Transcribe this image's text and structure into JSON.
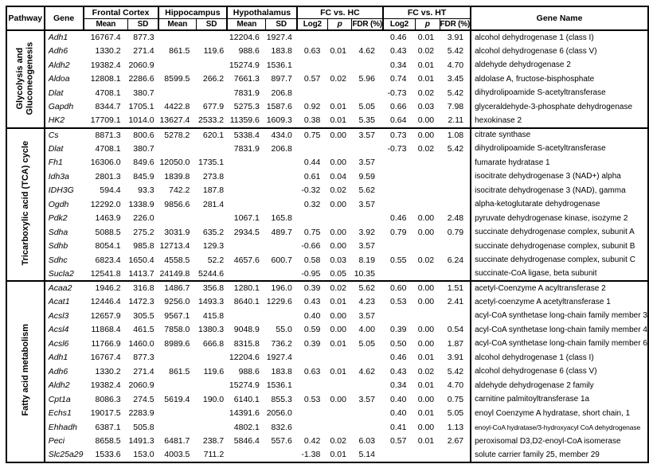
{
  "table": {
    "headers": {
      "pathway": "Pathway",
      "gene": "Gene",
      "gene_name": "Gene Name",
      "groups": [
        {
          "label": "Frontal Cortex",
          "sub": [
            "Mean",
            "SD"
          ]
        },
        {
          "label": "Hippocampus",
          "sub": [
            "Mean",
            "SD"
          ]
        },
        {
          "label": "Hypothalamus",
          "sub": [
            "Mean",
            "SD"
          ]
        },
        {
          "label": "FC vs. HC",
          "sub": [
            "Log2",
            "p",
            "FDR (%)"
          ]
        },
        {
          "label": "FC vs. HT",
          "sub": [
            "Log2",
            "p",
            "FDR (%)"
          ]
        }
      ]
    },
    "sections": [
      {
        "pathway": "Glycolysis and Gluconeogenesis",
        "rows": [
          {
            "gene": "Adh1",
            "values": [
              "16767.4",
              "877.3",
              "",
              "",
              "12204.6",
              "1927.4",
              "",
              "",
              "",
              "0.46",
              "0.01",
              "3.91"
            ],
            "gene_name": "alcohol dehydrogenase 1 (class I)"
          },
          {
            "gene": "Adh6",
            "values": [
              "1330.2",
              "271.4",
              "861.5",
              "119.6",
              "988.6",
              "183.8",
              "0.63",
              "0.01",
              "4.62",
              "0.43",
              "0.02",
              "5.42"
            ],
            "gene_name": "alcohol dehydrogenase 6 (class V)"
          },
          {
            "gene": "Aldh2",
            "values": [
              "19382.4",
              "2060.9",
              "",
              "",
              "15274.9",
              "1536.1",
              "",
              "",
              "",
              "0.34",
              "0.01",
              "4.70"
            ],
            "gene_name": "aldehyde dehydrogenase 2"
          },
          {
            "gene": "Aldoa",
            "values": [
              "12808.1",
              "2286.6",
              "8599.5",
              "266.2",
              "7661.3",
              "897.7",
              "0.57",
              "0.02",
              "5.96",
              "0.74",
              "0.01",
              "3.45"
            ],
            "gene_name": "aldolase A, fructose-bisphosphate"
          },
          {
            "gene": "Dlat",
            "values": [
              "4708.1",
              "380.7",
              "",
              "",
              "7831.9",
              "206.8",
              "",
              "",
              "",
              "-0.73",
              "0.02",
              "5.42"
            ],
            "gene_name": "dihydrolipoamide S-acetyltransferase"
          },
          {
            "gene": "Gapdh",
            "values": [
              "8344.7",
              "1705.1",
              "4422.8",
              "677.9",
              "5275.3",
              "1587.6",
              "0.92",
              "0.01",
              "5.05",
              "0.66",
              "0.03",
              "7.98"
            ],
            "gene_name": "glyceraldehyde-3-phosphate dehydrogenase"
          },
          {
            "gene": "HK2",
            "values": [
              "17709.1",
              "1014.0",
              "13627.4",
              "2533.2",
              "11359.6",
              "1609.3",
              "0.38",
              "0.01",
              "5.35",
              "0.64",
              "0.00",
              "2.11"
            ],
            "gene_name": "hexokinase 2"
          }
        ]
      },
      {
        "pathway": "Tricarboxylic acid (TCA) cycle",
        "rows": [
          {
            "gene": "Cs",
            "values": [
              "8871.3",
              "800.6",
              "5278.2",
              "620.1",
              "5338.4",
              "434.0",
              "0.75",
              "0.00",
              "3.57",
              "0.73",
              "0.00",
              "1.08"
            ],
            "gene_name": "citrate synthase"
          },
          {
            "gene": "Dlat",
            "values": [
              "4708.1",
              "380.7",
              "",
              "",
              "7831.9",
              "206.8",
              "",
              "",
              "",
              "-0.73",
              "0.02",
              "5.42"
            ],
            "gene_name": "dihydrolipoamide S-acetyltransferase"
          },
          {
            "gene": "Fh1",
            "values": [
              "16306.0",
              "849.6",
              "12050.0",
              "1735.1",
              "",
              "",
              "0.44",
              "0.00",
              "3.57",
              "",
              "",
              ""
            ],
            "gene_name": "fumarate hydratase 1"
          },
          {
            "gene": "Idh3a",
            "values": [
              "2801.3",
              "845.9",
              "1839.8",
              "273.8",
              "",
              "",
              "0.61",
              "0.04",
              "9.59",
              "",
              "",
              ""
            ],
            "gene_name": "isocitrate dehydrogenase 3 (NAD+) alpha"
          },
          {
            "gene": "IDH3G",
            "values": [
              "594.4",
              "93.3",
              "742.2",
              "187.8",
              "",
              "",
              "-0.32",
              "0.02",
              "5.62",
              "",
              "",
              ""
            ],
            "gene_name": "isocitrate dehydrogenase 3 (NAD), gamma"
          },
          {
            "gene": "Ogdh",
            "values": [
              "12292.0",
              "1338.9",
              "9856.6",
              "281.4",
              "",
              "",
              "0.32",
              "0.00",
              "3.57",
              "",
              "",
              ""
            ],
            "gene_name": "alpha-ketoglutarate dehydrogenase"
          },
          {
            "gene": "Pdk2",
            "values": [
              "1463.9",
              "226.0",
              "",
              "",
              "1067.1",
              "165.8",
              "",
              "",
              "",
              "0.46",
              "0.00",
              "2.48"
            ],
            "gene_name": "pyruvate dehydrogenase kinase, isozyme 2"
          },
          {
            "gene": "Sdha",
            "values": [
              "5088.5",
              "275.2",
              "3031.9",
              "635.2",
              "2934.5",
              "489.7",
              "0.75",
              "0.00",
              "3.92",
              "0.79",
              "0.00",
              "0.79"
            ],
            "gene_name": "succinate dehydrogenase complex, subunit A"
          },
          {
            "gene": "Sdhb",
            "values": [
              "8054.1",
              "985.8",
              "12713.4",
              "129.3",
              "",
              "",
              "-0.66",
              "0.00",
              "3.57",
              "",
              "",
              ""
            ],
            "gene_name": "succinate dehydrogenase complex, subunit B"
          },
          {
            "gene": "Sdhc",
            "values": [
              "6823.4",
              "1650.4",
              "4558.5",
              "52.2",
              "4657.6",
              "600.7",
              "0.58",
              "0.03",
              "8.19",
              "0.55",
              "0.02",
              "6.24"
            ],
            "gene_name": "succinate dehydrogenase complex, subunit C"
          },
          {
            "gene": "Sucla2",
            "values": [
              "12541.8",
              "1413.7",
              "24149.8",
              "5244.6",
              "",
              "",
              "-0.95",
              "0.05",
              "10.35",
              "",
              "",
              ""
            ],
            "gene_name": "succinate-CoA ligase, beta subunit"
          }
        ]
      },
      {
        "pathway": "Fatty acid metabolism",
        "rows": [
          {
            "gene": "Acaa2",
            "values": [
              "1946.2",
              "316.8",
              "1486.7",
              "356.8",
              "1280.1",
              "196.0",
              "0.39",
              "0.02",
              "5.62",
              "0.60",
              "0.00",
              "1.51"
            ],
            "gene_name": "acetyl-Coenzyme A acyltransferase 2"
          },
          {
            "gene": "Acat1",
            "values": [
              "12446.4",
              "1472.3",
              "9256.0",
              "1493.3",
              "8640.1",
              "1229.6",
              "0.43",
              "0.01",
              "4.23",
              "0.53",
              "0.00",
              "2.41"
            ],
            "gene_name": "acetyl-coenzyme A acetyltransferase 1"
          },
          {
            "gene": "Acsl3",
            "values": [
              "12657.9",
              "305.5",
              "9567.1",
              "415.8",
              "",
              "",
              "0.40",
              "0.00",
              "3.57",
              "",
              "",
              ""
            ],
            "gene_name": "acyl-CoA synthetase long-chain family member 3"
          },
          {
            "gene": "Acsl4",
            "values": [
              "11868.4",
              "461.5",
              "7858.0",
              "1380.3",
              "9048.9",
              "55.0",
              "0.59",
              "0.00",
              "4.00",
              "0.39",
              "0.00",
              "0.54"
            ],
            "gene_name": "acyl-CoA synthetase long-chain family member 4"
          },
          {
            "gene": "Acsl6",
            "values": [
              "11766.9",
              "1460.0",
              "8989.6",
              "666.8",
              "8315.8",
              "736.2",
              "0.39",
              "0.01",
              "5.05",
              "0.50",
              "0.00",
              "1.87"
            ],
            "gene_name": "acyl-CoA synthetase long-chain family member 6"
          },
          {
            "gene": "Adh1",
            "values": [
              "16767.4",
              "877.3",
              "",
              "",
              "12204.6",
              "1927.4",
              "",
              "",
              "",
              "0.46",
              "0.01",
              "3.91"
            ],
            "gene_name": "alcohol dehydrogenase 1 (class I)"
          },
          {
            "gene": "Adh6",
            "values": [
              "1330.2",
              "271.4",
              "861.5",
              "119.6",
              "988.6",
              "183.8",
              "0.63",
              "0.01",
              "4.62",
              "0.43",
              "0.02",
              "5.42"
            ],
            "gene_name": "alcohol dehydrogenase 6 (class V)"
          },
          {
            "gene": "Aldh2",
            "values": [
              "19382.4",
              "2060.9",
              "",
              "",
              "15274.9",
              "1536.1",
              "",
              "",
              "",
              "0.34",
              "0.01",
              "4.70"
            ],
            "gene_name": "aldehyde dehydrogenase 2 family"
          },
          {
            "gene": "Cpt1a",
            "values": [
              "8086.3",
              "274.5",
              "5619.4",
              "190.0",
              "6140.1",
              "855.3",
              "0.53",
              "0.00",
              "3.57",
              "0.40",
              "0.00",
              "0.75"
            ],
            "gene_name": "carnitine palmitoyltransferase 1a"
          },
          {
            "gene": "Echs1",
            "values": [
              "19017.5",
              "2283.9",
              "",
              "",
              "14391.6",
              "2056.0",
              "",
              "",
              "",
              "0.40",
              "0.01",
              "5.05"
            ],
            "gene_name": "enoyl Coenzyme A hydratase, short chain, 1"
          },
          {
            "gene": "Ehhadh",
            "values": [
              "6387.1",
              "505.8",
              "",
              "",
              "4802.1",
              "832.6",
              "",
              "",
              "",
              "0.41",
              "0.00",
              "1.13"
            ],
            "gene_name": "enoyl-CoA hydratase/3-hydroxyacyl CoA dehydrogenase"
          },
          {
            "gene": "Peci",
            "values": [
              "8658.5",
              "1491.3",
              "6481.7",
              "238.7",
              "5846.4",
              "557.6",
              "0.42",
              "0.02",
              "6.03",
              "0.57",
              "0.01",
              "2.67"
            ],
            "gene_name": "peroxisomal D3,D2-enoyl-CoA isomerase"
          },
          {
            "gene": "Slc25a29",
            "values": [
              "1533.6",
              "153.0",
              "4003.5",
              "711.2",
              "",
              "",
              "-1.38",
              "0.01",
              "5.14",
              "",
              "",
              ""
            ],
            "gene_name": "solute carrier family 25, member 29"
          }
        ]
      }
    ]
  }
}
